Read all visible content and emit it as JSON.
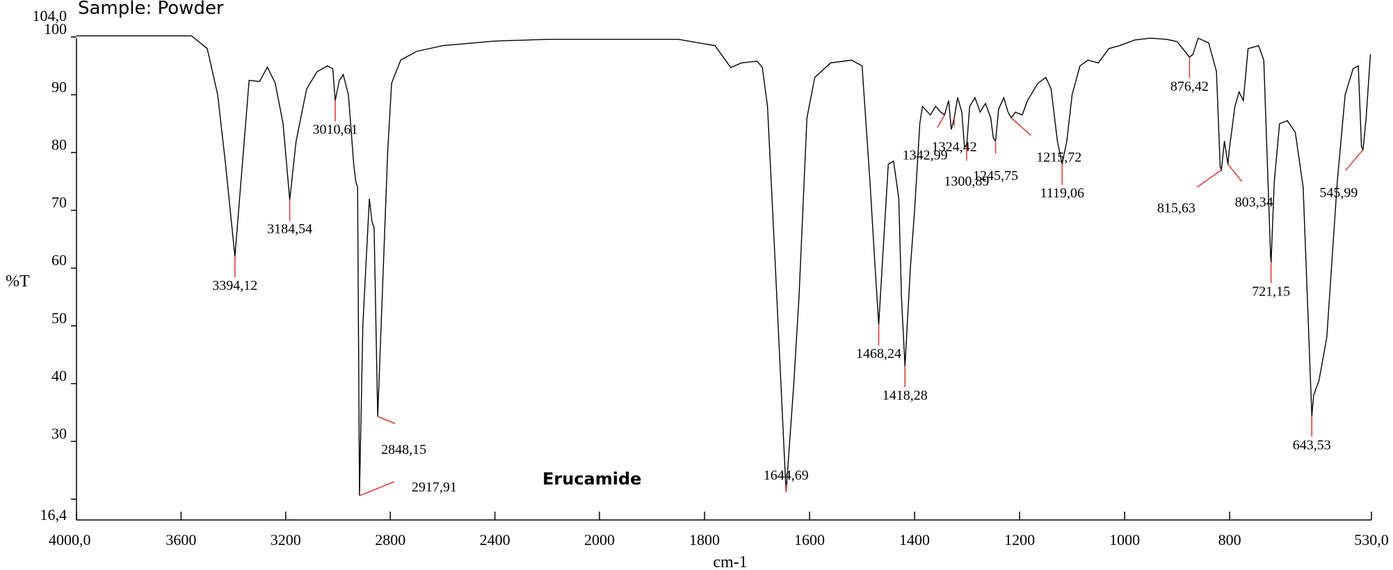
{
  "sample_label": "Sample: Powder",
  "chart_data": {
    "type": "line",
    "title": "Sample: Powder",
    "annotation": "Erucamide",
    "xlabel": "cm-1",
    "ylabel": "%T",
    "xlim": [
      4000.0,
      530.0
    ],
    "ylim": [
      16.4,
      104.0
    ],
    "x_reversed": true,
    "grid": false,
    "x_ticks": [
      4000,
      3600,
      3200,
      2800,
      2400,
      2000,
      1800,
      1600,
      1400,
      1200,
      1000,
      800,
      530
    ],
    "x_tick_labels": [
      "4000,0",
      "3600",
      "3200",
      "2800",
      "2400",
      "2000",
      "1800",
      "1600",
      "1400",
      "1200",
      "1000",
      "800",
      "530,0"
    ],
    "y_ticks": [
      30,
      40,
      50,
      60,
      70,
      80,
      90,
      100
    ],
    "y_tick_labels": [
      "30",
      "40",
      "50",
      "60",
      "70",
      "80",
      "90",
      "100"
    ],
    "y_extra_labels": [
      "104,0",
      "16,4"
    ],
    "baseline": [
      [
        4000,
        100.2
      ],
      [
        3560,
        100.2
      ],
      [
        3500,
        98.0
      ],
      [
        3460,
        90.0
      ],
      [
        3430,
        78.0
      ],
      [
        3340,
        92.5
      ],
      [
        3300,
        92.3
      ],
      [
        3270,
        94.8
      ],
      [
        3240,
        92.0
      ],
      [
        3210,
        85.0
      ],
      [
        3160,
        82.0
      ],
      [
        3120,
        91.0
      ],
      [
        3080,
        94.0
      ],
      [
        3040,
        95.0
      ],
      [
        3020,
        94.5
      ],
      [
        2995,
        92.5
      ],
      [
        2980,
        93.5
      ],
      [
        2960,
        90.0
      ],
      [
        2940,
        78.0
      ],
      [
        2932,
        75.0
      ],
      [
        2925,
        74.0
      ],
      [
        2905,
        50.0
      ],
      [
        2880,
        72.0
      ],
      [
        2870,
        68.0
      ],
      [
        2862,
        67.0
      ],
      [
        2810,
        80.0
      ],
      [
        2795,
        92.0
      ],
      [
        2760,
        96.0
      ],
      [
        2700,
        97.5
      ],
      [
        2600,
        98.5
      ],
      [
        2400,
        99.3
      ],
      [
        2200,
        99.6
      ],
      [
        2000,
        99.6
      ],
      [
        1850,
        99.6
      ],
      [
        1780,
        98.5
      ],
      [
        1750,
        94.7
      ],
      [
        1730,
        95.5
      ],
      [
        1700,
        95.8
      ],
      [
        1690,
        94.8
      ],
      [
        1680,
        88.0
      ],
      [
        1665,
        60.0
      ],
      [
        1630,
        40.0
      ],
      [
        1620,
        55.0
      ],
      [
        1605,
        86.0
      ],
      [
        1590,
        93.0
      ],
      [
        1560,
        95.5
      ],
      [
        1520,
        96.0
      ],
      [
        1500,
        95.0
      ],
      [
        1485,
        75.0
      ],
      [
        1475,
        60.0
      ],
      [
        1460,
        63.0
      ],
      [
        1450,
        78.0
      ],
      [
        1440,
        78.5
      ],
      [
        1430,
        72.0
      ],
      [
        1425,
        55.0
      ],
      [
        1408,
        60.0
      ],
      [
        1400,
        70.0
      ],
      [
        1390,
        85.0
      ],
      [
        1385,
        88.0
      ],
      [
        1370,
        86.5
      ],
      [
        1360,
        88.0
      ],
      [
        1350,
        87.0
      ],
      [
        1335,
        89.0
      ],
      [
        1330,
        84.0
      ],
      [
        1318,
        89.5
      ],
      [
        1310,
        87.0
      ],
      [
        1305,
        81.0
      ],
      [
        1295,
        88.0
      ],
      [
        1285,
        89.5
      ],
      [
        1275,
        87.0
      ],
      [
        1265,
        88.5
      ],
      [
        1255,
        86.0
      ],
      [
        1250,
        82.5
      ],
      [
        1240,
        87.5
      ],
      [
        1230,
        89.5
      ],
      [
        1222,
        87.0
      ],
      [
        1208,
        87.0
      ],
      [
        1195,
        86.5
      ],
      [
        1185,
        89.0
      ],
      [
        1165,
        92.0
      ],
      [
        1150,
        93.0
      ],
      [
        1140,
        91.0
      ],
      [
        1128,
        82.0
      ],
      [
        1110,
        82.0
      ],
      [
        1100,
        90.0
      ],
      [
        1085,
        95.0
      ],
      [
        1070,
        96.0
      ],
      [
        1050,
        95.5
      ],
      [
        1030,
        98.0
      ],
      [
        1010,
        98.5
      ],
      [
        980,
        99.5
      ],
      [
        950,
        99.8
      ],
      [
        920,
        99.6
      ],
      [
        900,
        99.2
      ],
      [
        885,
        97.5
      ],
      [
        870,
        97.0
      ],
      [
        860,
        99.8
      ],
      [
        840,
        99.0
      ],
      [
        825,
        94.0
      ],
      [
        818,
        77.5
      ],
      [
        810,
        82.0
      ],
      [
        800,
        81.0
      ],
      [
        790,
        88.0
      ],
      [
        782,
        90.5
      ],
      [
        774,
        89.0
      ],
      [
        765,
        98.0
      ],
      [
        745,
        98.5
      ],
      [
        735,
        96.0
      ],
      [
        722,
        62.0
      ],
      [
        715,
        75.0
      ],
      [
        705,
        85.0
      ],
      [
        690,
        85.5
      ],
      [
        675,
        83.5
      ],
      [
        660,
        74.0
      ],
      [
        650,
        50.0
      ],
      [
        640,
        38.0
      ],
      [
        630,
        40.5
      ],
      [
        615,
        48.0
      ],
      [
        595,
        75.0
      ],
      [
        580,
        90.0
      ],
      [
        565,
        94.5
      ],
      [
        555,
        95.0
      ],
      [
        549,
        81.0
      ],
      [
        540,
        86.0
      ],
      [
        532,
        97.0
      ]
    ],
    "peaks": [
      {
        "x": 3394.12,
        "y": 62.0,
        "label": "3394,12"
      },
      {
        "x": 3184.54,
        "y": 71.8,
        "label": "3184,54"
      },
      {
        "x": 3010.61,
        "y": 89.0,
        "label": "3010,61"
      },
      {
        "x": 2917.91,
        "y": 20.6,
        "label": "2917,91"
      },
      {
        "x": 2848.15,
        "y": 34.3,
        "label": "2848,15"
      },
      {
        "x": 1644.69,
        "y": 21.2,
        "label": "1644,69"
      },
      {
        "x": 1468.24,
        "y": 50.2,
        "label": "1468,24"
      },
      {
        "x": 1418.28,
        "y": 43.0,
        "label": "1418,28"
      },
      {
        "x": 1342.99,
        "y": 86.5,
        "label": "1342,99"
      },
      {
        "x": 1324.42,
        "y": 86.0,
        "label": "1324,42"
      },
      {
        "x": 1300.89,
        "y": 81.0,
        "label": "1300,89"
      },
      {
        "x": 1245.75,
        "y": 82.0,
        "label": "1245,75"
      },
      {
        "x": 1215.72,
        "y": 86.0,
        "label": "1215,72"
      },
      {
        "x": 1119.06,
        "y": 78.0,
        "label": "1119,06"
      },
      {
        "x": 876.42,
        "y": 96.5,
        "label": "876,42"
      },
      {
        "x": 815.63,
        "y": 77.0,
        "label": "815,63"
      },
      {
        "x": 803.34,
        "y": 78.0,
        "label": "803,34"
      },
      {
        "x": 721.15,
        "y": 61.0,
        "label": "721,15"
      },
      {
        "x": 643.53,
        "y": 34.4,
        "label": "643,53"
      },
      {
        "x": 545.99,
        "y": 80.5,
        "label": "545,99"
      }
    ]
  }
}
